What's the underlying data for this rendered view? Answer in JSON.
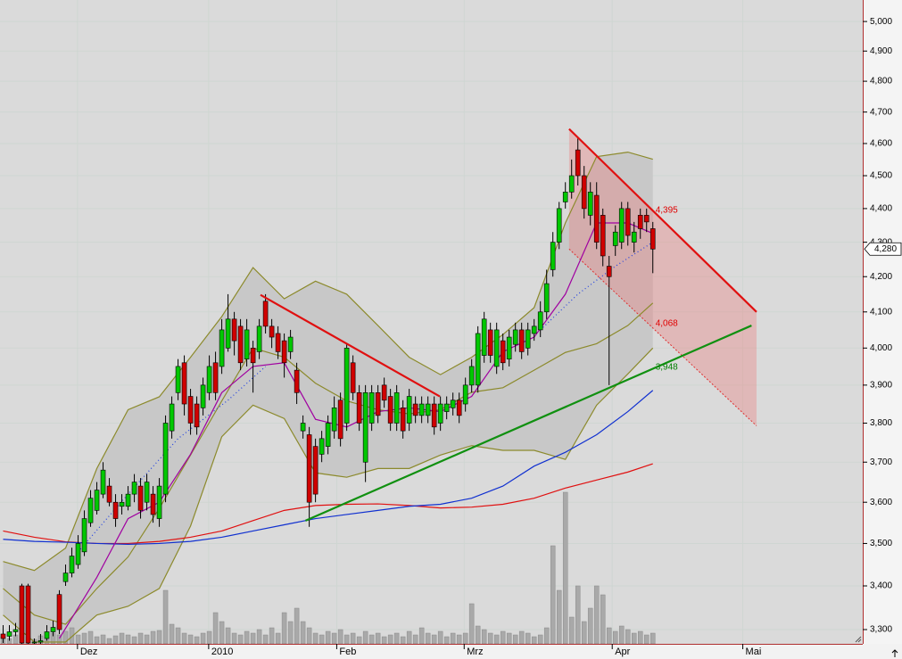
{
  "chart_data": {
    "type": "candlestick",
    "log_y": true,
    "ylim": [
      3268,
      5074
    ],
    "yticks": [
      {
        "value": 3300,
        "label": "3,300"
      },
      {
        "value": 3400,
        "label": "3,400"
      },
      {
        "value": 3500,
        "label": "3,500"
      },
      {
        "value": 3600,
        "label": "3,600"
      },
      {
        "value": 3700,
        "label": "3,700"
      },
      {
        "value": 3800,
        "label": "3,800"
      },
      {
        "value": 3900,
        "label": "3,900"
      },
      {
        "value": 4000,
        "label": "4,000"
      },
      {
        "value": 4100,
        "label": "4,100"
      },
      {
        "value": 4200,
        "label": "4,200"
      },
      {
        "value": 4300,
        "label": "4,300"
      },
      {
        "value": 4400,
        "label": "4,400"
      },
      {
        "value": 4500,
        "label": "4,500"
      },
      {
        "value": 4600,
        "label": "4,600"
      },
      {
        "value": 4700,
        "label": "4,700"
      },
      {
        "value": 4800,
        "label": "4,800"
      },
      {
        "value": 4900,
        "label": "4,900"
      },
      {
        "value": 5000,
        "label": "5,000"
      }
    ],
    "xlim": [
      -0.5,
      137.6
    ],
    "xticks": [
      {
        "value": 11.9,
        "label": "Dez"
      },
      {
        "value": 32.9,
        "label": "2010"
      },
      {
        "value": 53.4,
        "label": "Feb"
      },
      {
        "value": 73.8,
        "label": "Mrz"
      },
      {
        "value": 97.5,
        "label": "Apr"
      },
      {
        "value": 118.4,
        "label": "Mai"
      }
    ],
    "grid": true,
    "up_color": "#00c800",
    "down_color": "#d00000",
    "open": [
      3290,
      3285,
      3295,
      3400,
      3400,
      3270,
      3272,
      3280,
      3295,
      3380,
      3410,
      3430,
      3450,
      3480,
      3550,
      3580,
      3620,
      3640,
      3600,
      3590,
      3590,
      3620,
      3640,
      3600,
      3620,
      3560,
      3620,
      3780,
      3880,
      3960,
      3870,
      3850,
      3840,
      3880,
      3960,
      3950,
      4000,
      4080,
      4060,
      3970,
      4000,
      3990,
      4130,
      4060,
      4040,
      4020,
      3990,
      3940,
      3780,
      3770,
      3740,
      3720,
      3740,
      3780,
      3860,
      3800,
      3960,
      3880,
      3700,
      3800,
      3880,
      3900,
      3870,
      3800,
      3840,
      3800,
      3850,
      3820,
      3820,
      3850,
      3800,
      3830,
      3840,
      3860,
      3850,
      3900,
      3900,
      3980,
      4050,
      3950,
      4020,
      3970,
      4010,
      4050,
      4000,
      4040,
      4050,
      4100,
      4220,
      4300,
      4420,
      4450,
      4580,
      4500,
      4380,
      4440,
      4380,
      4230,
      4290,
      4300,
      4400,
      4300,
      4380,
      4380,
      4340
    ],
    "high": [
      3310,
      3310,
      3315,
      3405,
      3405,
      3280,
      3290,
      3310,
      3320,
      3390,
      3450,
      3490,
      3520,
      3580,
      3630,
      3650,
      3700,
      3660,
      3620,
      3620,
      3640,
      3670,
      3660,
      3670,
      3640,
      3660,
      3820,
      3870,
      3970,
      3980,
      3890,
      3870,
      3920,
      3980,
      3990,
      4080,
      4150,
      4100,
      4080,
      4080,
      4020,
      4080,
      4150,
      4080,
      4060,
      4040,
      4050,
      3960,
      3820,
      3790,
      3760,
      3780,
      3820,
      3870,
      3880,
      4010,
      3980,
      3900,
      3900,
      3900,
      3900,
      3920,
      3890,
      3900,
      3860,
      3890,
      3870,
      3870,
      3870,
      3870,
      3870,
      3870,
      3880,
      3880,
      3920,
      3970,
      4060,
      4100,
      4070,
      4070,
      4040,
      4050,
      4070,
      4070,
      4070,
      4080,
      4130,
      4220,
      4330,
      4420,
      4480,
      4550,
      4620,
      4530,
      4480,
      4480,
      4400,
      4260,
      4350,
      4420,
      4420,
      4360,
      4400,
      4400,
      4360
    ],
    "low": [
      3270,
      3275,
      3285,
      3268,
      3268,
      3268,
      3268,
      3275,
      3285,
      3290,
      3400,
      3420,
      3440,
      3470,
      3540,
      3570,
      3610,
      3590,
      3540,
      3570,
      3580,
      3600,
      3560,
      3580,
      3550,
      3540,
      3600,
      3760,
      3860,
      3820,
      3770,
      3770,
      3820,
      3860,
      3860,
      3930,
      3990,
      3980,
      3940,
      3950,
      3880,
      3970,
      4040,
      4000,
      3970,
      3920,
      3970,
      3850,
      3760,
      3540,
      3600,
      3700,
      3720,
      3760,
      3740,
      3780,
      3860,
      3780,
      3650,
      3780,
      3800,
      3840,
      3780,
      3780,
      3760,
      3780,
      3800,
      3800,
      3800,
      3770,
      3780,
      3810,
      3820,
      3800,
      3830,
      3880,
      3880,
      3960,
      3960,
      3930,
      3940,
      3950,
      3990,
      3970,
      3980,
      4020,
      4030,
      4080,
      4200,
      4280,
      4400,
      4430,
      4470,
      4370,
      4350,
      4280,
      4230,
      3900,
      4260,
      4280,
      4290,
      4270,
      4310,
      4330,
      4210
    ],
    "close": [
      3280,
      3295,
      3300,
      3270,
      3270,
      3272,
      3275,
      3295,
      3305,
      3300,
      3430,
      3470,
      3500,
      3560,
      3610,
      3630,
      3680,
      3600,
      3560,
      3600,
      3620,
      3650,
      3580,
      3650,
      3570,
      3640,
      3800,
      3850,
      3950,
      3850,
      3800,
      3790,
      3900,
      3950,
      3880,
      4050,
      4080,
      4020,
      3960,
      4050,
      3960,
      4060,
      4060,
      4030,
      3990,
      3960,
      4030,
      3880,
      3800,
      3600,
      3620,
      3760,
      3800,
      3840,
      3760,
      4000,
      3880,
      3800,
      3880,
      3880,
      3820,
      3860,
      3800,
      3880,
      3780,
      3870,
      3820,
      3850,
      3850,
      3790,
      3850,
      3850,
      3860,
      3820,
      3900,
      3950,
      4040,
      4080,
      3980,
      4050,
      3960,
      4030,
      4050,
      3990,
      4050,
      4060,
      4100,
      4180,
      4300,
      4400,
      4450,
      4500,
      4500,
      4400,
      4450,
      4300,
      4260,
      4200,
      4330,
      4400,
      4320,
      4330,
      4340,
      4360,
      4280
    ],
    "volume": {
      "color": "#a9a9a9",
      "vlim": [
        0,
        200
      ],
      "values": [
        8,
        6,
        10,
        12,
        8,
        5,
        9,
        7,
        12,
        10,
        14,
        18,
        10,
        12,
        14,
        8,
        10,
        6,
        9,
        12,
        10,
        8,
        12,
        10,
        14,
        15,
        60,
        22,
        18,
        12,
        10,
        8,
        12,
        14,
        35,
        25,
        18,
        12,
        10,
        14,
        12,
        16,
        10,
        18,
        12,
        35,
        25,
        40,
        25,
        18,
        12,
        10,
        14,
        12,
        16,
        10,
        12,
        8,
        14,
        10,
        12,
        8,
        10,
        12,
        8,
        14,
        10,
        18,
        12,
        10,
        14,
        8,
        12,
        10,
        12,
        45,
        20,
        16,
        12,
        10,
        14,
        12,
        10,
        14,
        12,
        8,
        10,
        18,
        110,
        60,
        170,
        30,
        65,
        25,
        40,
        65,
        55,
        18,
        14,
        20,
        16,
        12,
        14,
        10,
        12
      ]
    },
    "band": {
      "fill": "#c8c8c8",
      "color": "#8c8a2c",
      "x": [
        0,
        5,
        10,
        15,
        20,
        25,
        30,
        35,
        40,
        45,
        50,
        55,
        60,
        65,
        70,
        75,
        80,
        85,
        90,
        95,
        100,
        104
      ],
      "upper": [
        3457,
        3436,
        3489,
        3684,
        3835,
        3869,
        3975,
        4087,
        4226,
        4137,
        4187,
        4150,
        4062,
        3975,
        3928,
        3975,
        4037,
        4112,
        4357,
        4559,
        4573,
        4551
      ],
      "lower": [
        3333,
        3272,
        3272,
        3333,
        3353,
        3394,
        3542,
        3765,
        3847,
        3812,
        3673,
        3662,
        3684,
        3684,
        3718,
        3742,
        3730,
        3730,
        3707,
        3847,
        3930,
        4000
      ]
    },
    "indicators": [
      {
        "color": "#8c8a2c",
        "x": [
          0,
          5,
          10,
          15,
          20,
          25,
          30,
          35,
          40,
          45,
          50,
          55,
          60,
          65,
          70,
          75,
          80,
          85,
          90,
          95,
          100,
          104
        ],
        "values": [
          3394,
          3333,
          3312,
          3394,
          3468,
          3585,
          3718,
          3858,
          4000,
          3975,
          3905,
          3858,
          3835,
          3824,
          3835,
          3881,
          3893,
          3940,
          3988,
          4012,
          4062,
          4125
        ]
      },
      {
        "color": "#e01010",
        "x": [
          0,
          5,
          10,
          15,
          20,
          25,
          30,
          35,
          40,
          45,
          50,
          55,
          60,
          65,
          70,
          75,
          80,
          85,
          90,
          95,
          100,
          104
        ],
        "values": [
          3530,
          3515,
          3504,
          3500,
          3500,
          3505,
          3515,
          3530,
          3555,
          3580,
          3592,
          3595,
          3596,
          3592,
          3586,
          3588,
          3595,
          3610,
          3635,
          3655,
          3675,
          3696
        ]
      },
      {
        "color": "#1030d0",
        "x": [
          0,
          5,
          10,
          15,
          20,
          25,
          30,
          35,
          40,
          45,
          50,
          55,
          60,
          65,
          70,
          75,
          80,
          85,
          90,
          95,
          100,
          104
        ],
        "values": [
          3510,
          3505,
          3503,
          3500,
          3498,
          3500,
          3505,
          3515,
          3530,
          3545,
          3560,
          3570,
          3580,
          3590,
          3595,
          3610,
          3640,
          3690,
          3725,
          3770,
          3830,
          3886
        ]
      },
      {
        "color": "#a000a0",
        "x": [
          9,
          15,
          20,
          25,
          30,
          35,
          40,
          45,
          50,
          55,
          60,
          65,
          70,
          75,
          80,
          85,
          90,
          95,
          100,
          104
        ],
        "values": [
          3280,
          3420,
          3560,
          3600,
          3720,
          3880,
          3950,
          3960,
          3810,
          3790,
          3830,
          3840,
          3830,
          3870,
          3990,
          4030,
          4150,
          4357,
          4357,
          4326
        ]
      },
      {
        "color": "#2040e0",
        "dotted": true,
        "x": [
          12,
          20,
          28,
          36,
          42,
          60,
          86,
          92,
          98,
          104
        ],
        "values": [
          3480,
          3620,
          3760,
          3860,
          3950,
          null,
          4050,
          4150,
          4230,
          4300
        ]
      }
    ],
    "channel": {
      "fill": "rgba(235,120,120,0.35)",
      "color": "#e03030",
      "x": [
        90.6,
        120.6
      ],
      "upper": [
        4646,
        4100
      ],
      "lower": [
        4280,
        3793
      ]
    },
    "trendlines": [
      {
        "color": "#e01010",
        "x": [
          41.2,
          69.9
        ],
        "values": [
          4148,
          3870
        ]
      },
      {
        "color": "#109010",
        "x": [
          48.4,
          119.8
        ],
        "values": [
          3555,
          4062
        ]
      },
      {
        "color": "#e01010",
        "x": [
          90.6,
          120.6
        ],
        "values": [
          4646,
          4100
        ]
      }
    ],
    "annotations": [
      {
        "value": 4395,
        "label": "4,395",
        "color": "#e00000"
      },
      {
        "value": 4068,
        "label": "4,068",
        "color": "#e00000"
      },
      {
        "value": 3948,
        "label": "3,948",
        "color": "#008000"
      }
    ],
    "last_price": {
      "value": 4280,
      "label": "4,280"
    }
  }
}
